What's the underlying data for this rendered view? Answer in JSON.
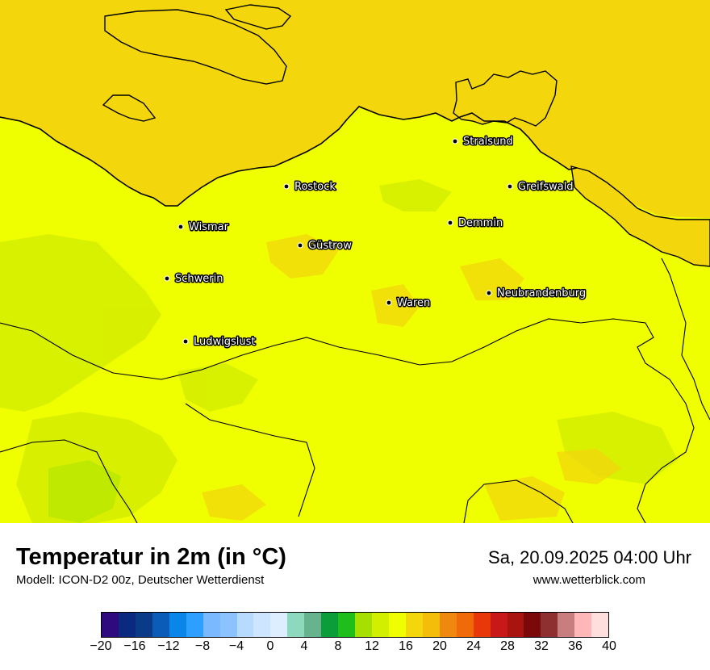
{
  "title": "Temperatur in 2m (in °C)",
  "subtitle": "Modell: ICON-D2 00z, Deutscher Wetterdienst",
  "datetime": "Sa, 20.09.2025 04:00 Uhr",
  "url": "www.wetterblick.com",
  "colors": {
    "sea": "#f3d60c",
    "land": "#f0ff00",
    "land_cool": "#d4ee00",
    "land_cooler": "#b8e600",
    "coast": "#000000"
  },
  "cities": [
    {
      "name": "Stralsund"
    },
    {
      "name": "Rostock"
    },
    {
      "name": "Greifswald"
    },
    {
      "name": "Wismar"
    },
    {
      "name": "Demmin"
    },
    {
      "name": "Güstrow"
    },
    {
      "name": "Schwerin"
    },
    {
      "name": "Neubrandenburg"
    },
    {
      "name": "Waren"
    },
    {
      "name": "Ludwigslust"
    }
  ],
  "legend": {
    "colors": [
      "#2e0a7e",
      "#0a2a80",
      "#0a3b86",
      "#0a5cb8",
      "#0a86e8",
      "#2da0ff",
      "#7ab9ff",
      "#8cc2ff",
      "#b7dbff",
      "#cde5ff",
      "#dceeff",
      "#8dd9bd",
      "#67b38d",
      "#0a9d3a",
      "#1fbe1b",
      "#a6e000",
      "#d3ef00",
      "#f0ff00",
      "#f3d60c",
      "#f3bd0a",
      "#f0880f",
      "#f06a0a",
      "#e8380a",
      "#c81818",
      "#aa1410",
      "#7a0a0a",
      "#8f3030",
      "#c87e7e",
      "#ffb7b7",
      "#ffdede"
    ],
    "ticks": [
      "−20",
      "−16",
      "−12",
      "−8",
      "−4",
      "0",
      "4",
      "8",
      "12",
      "16",
      "20",
      "24",
      "28",
      "32",
      "36",
      "40"
    ]
  }
}
